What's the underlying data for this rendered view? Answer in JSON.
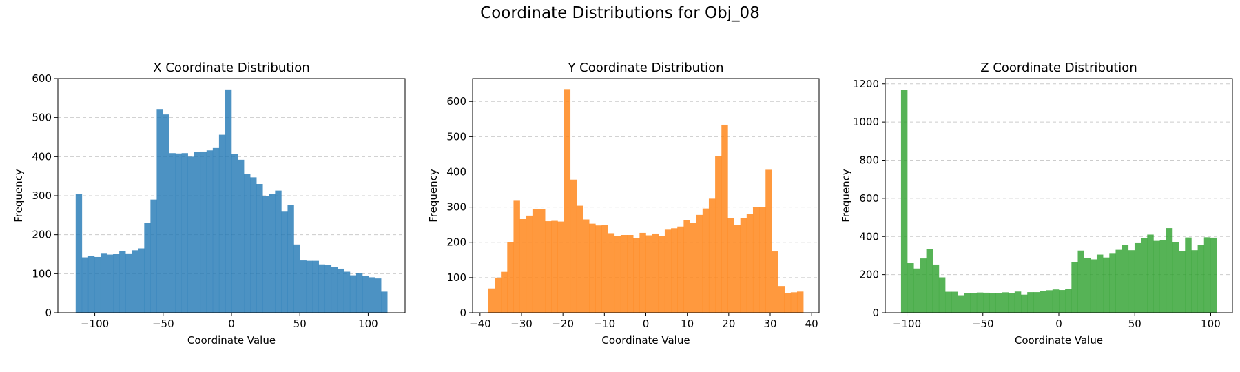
{
  "title": "Coordinate Distributions for Obj_08",
  "chart_data": [
    {
      "type": "bar",
      "title": "X Coordinate Distribution",
      "xlabel": "Coordinate Value",
      "ylabel": "Frequency",
      "color": "#1f77b4",
      "xlim": [
        -127,
        127
      ],
      "ylim": [
        0,
        600
      ],
      "xticks": [
        -100,
        -50,
        0,
        50,
        100
      ],
      "yticks": [
        0,
        100,
        200,
        300,
        400,
        500,
        600
      ],
      "grid": "y-dashed",
      "bin_start": -114,
      "bin_end": 114,
      "values": [
        305,
        142,
        145,
        143,
        153,
        149,
        150,
        158,
        152,
        160,
        165,
        230,
        290,
        522,
        508,
        409,
        408,
        409,
        400,
        412,
        413,
        416,
        422,
        456,
        572,
        406,
        392,
        356,
        347,
        330,
        299,
        305,
        313,
        259,
        277,
        175,
        134,
        133,
        133,
        124,
        122,
        118,
        113,
        105,
        96,
        101,
        94,
        91,
        88,
        54
      ]
    },
    {
      "type": "bar",
      "title": "Y Coordinate Distribution",
      "xlabel": "Coordinate Value",
      "ylabel": "Frequency",
      "color": "#ff7f0e",
      "xlim": [
        -41.8,
        41.8
      ],
      "ylim": [
        0,
        665
      ],
      "xticks": [
        -40,
        -30,
        -20,
        -10,
        0,
        10,
        20,
        30,
        40
      ],
      "yticks": [
        0,
        100,
        200,
        300,
        400,
        500,
        600
      ],
      "grid": "y-dashed",
      "bin_start": -38,
      "bin_end": 38,
      "values": [
        69,
        100,
        116,
        200,
        318,
        266,
        276,
        294,
        294,
        260,
        261,
        259,
        635,
        378,
        304,
        265,
        253,
        248,
        249,
        226,
        218,
        221,
        221,
        213,
        227,
        220,
        225,
        218,
        236,
        240,
        245,
        264,
        255,
        278,
        296,
        324,
        444,
        534,
        269,
        249,
        269,
        281,
        300,
        300,
        406,
        174,
        76,
        55,
        58,
        60
      ]
    },
    {
      "type": "bar",
      "title": "Z Coordinate Distribution",
      "xlabel": "Coordinate Value",
      "ylabel": "Frequency",
      "color": "#2ca02c",
      "xlim": [
        -114.3,
        114.3
      ],
      "ylim": [
        0,
        1228
      ],
      "xticks": [
        -100,
        -50,
        0,
        50,
        100
      ],
      "yticks": [
        0,
        200,
        400,
        600,
        800,
        1000,
        1200
      ],
      "grid": "y-dashed",
      "bin_start": -103.9,
      "bin_end": 103.9,
      "values": [
        1168,
        260,
        232,
        285,
        335,
        253,
        186,
        110,
        110,
        92,
        103,
        103,
        106,
        105,
        102,
        103,
        107,
        102,
        111,
        95,
        108,
        108,
        115,
        118,
        122,
        119,
        124,
        265,
        326,
        289,
        280,
        305,
        290,
        313,
        330,
        355,
        328,
        365,
        393,
        410,
        377,
        380,
        444,
        369,
        323,
        395,
        328,
        356,
        396,
        394
      ]
    }
  ]
}
